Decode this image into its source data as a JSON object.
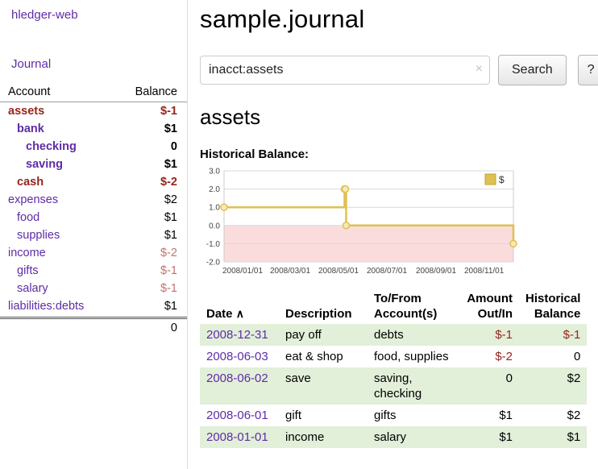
{
  "app": {
    "title": "hledger-web"
  },
  "sidebar": {
    "journal_link": "Journal",
    "headers": {
      "account": "Account",
      "balance": "Balance"
    },
    "accounts": [
      {
        "name": "assets",
        "balance": "$-1",
        "indent": 1,
        "bold": true,
        "name_color": "neg",
        "bal_color": "neg"
      },
      {
        "name": "bank",
        "balance": "$1",
        "indent": 2,
        "bold": true,
        "name_color": "",
        "bal_color": ""
      },
      {
        "name": "checking",
        "balance": "0",
        "indent": 3,
        "bold": true,
        "name_color": "",
        "bal_color": ""
      },
      {
        "name": "saving",
        "balance": "$1",
        "indent": 3,
        "bold": true,
        "name_color": "",
        "bal_color": ""
      },
      {
        "name": "cash",
        "balance": "$-2",
        "indent": 2,
        "bold": true,
        "name_color": "neg",
        "bal_color": "neg"
      },
      {
        "name": "expenses",
        "balance": "$2",
        "indent": 1,
        "bold": false,
        "name_color": "",
        "bal_color": ""
      },
      {
        "name": "food",
        "balance": "$1",
        "indent": 2,
        "bold": false,
        "name_color": "",
        "bal_color": ""
      },
      {
        "name": "supplies",
        "balance": "$1",
        "indent": 2,
        "bold": false,
        "name_color": "",
        "bal_color": ""
      },
      {
        "name": "income",
        "balance": "$-2",
        "indent": 1,
        "bold": false,
        "name_color": "",
        "bal_color": "negl"
      },
      {
        "name": "gifts",
        "balance": "$-1",
        "indent": 2,
        "bold": false,
        "name_color": "",
        "bal_color": "negl"
      },
      {
        "name": "salary",
        "balance": "$-1",
        "indent": 2,
        "bold": false,
        "name_color": "",
        "bal_color": "negl"
      },
      {
        "name": "liabilities:debts",
        "balance": "$1",
        "indent": 1,
        "bold": false,
        "name_color": "",
        "bal_color": ""
      }
    ],
    "total": "0"
  },
  "main": {
    "title": "sample.journal",
    "search": {
      "value": "inacct:assets",
      "clear_icon": "×",
      "button_label": "Search",
      "help_label": "?"
    },
    "account_heading": "assets",
    "chart_heading": "Historical Balance:"
  },
  "chart_data": {
    "type": "line",
    "step": true,
    "title": "Historical Balance:",
    "series": [
      {
        "name": "$",
        "points": [
          [
            "2008-01-01",
            1
          ],
          [
            "2008-06-01",
            2
          ],
          [
            "2008-06-02",
            2
          ],
          [
            "2008-06-03",
            0
          ],
          [
            "2008-12-31",
            -1
          ]
        ]
      }
    ],
    "ylim": [
      -2,
      3
    ],
    "y_ticks": [
      3.0,
      2.0,
      1.0,
      0.0,
      -1.0,
      -2.0
    ],
    "x_tick_labels": [
      "2008/01/01",
      "2008/03/01",
      "2008/05/01",
      "2008/07/01",
      "2008/09/01",
      "2008/11/01"
    ],
    "grid": true,
    "legend": {
      "label": "$",
      "position": "top-right"
    },
    "line_color": "#dfc050",
    "marker_fill": "#f7e9b6",
    "negative_region_color": "#fbdcdc"
  },
  "register": {
    "headers": {
      "date": "Date",
      "sort_icon": "∧",
      "description": "Description",
      "account": "To/From Account(s)",
      "amount": "Amount Out/In",
      "balance": "Historical Balance"
    },
    "rows": [
      {
        "date": "2008-12-31",
        "description": "pay off",
        "account": "debts",
        "amount": "$-1",
        "balance": "$-1",
        "amount_neg": true,
        "balance_neg": true
      },
      {
        "date": "2008-06-03",
        "description": "eat & shop",
        "account": "food, supplies",
        "amount": "$-2",
        "balance": "0",
        "amount_neg": true,
        "balance_neg": false
      },
      {
        "date": "2008-06-02",
        "description": "save",
        "account": "saving, checking",
        "amount": "0",
        "balance": "$2",
        "amount_neg": false,
        "balance_neg": false
      },
      {
        "date": "2008-06-01",
        "description": "gift",
        "account": "gifts",
        "amount": "$1",
        "balance": "$2",
        "amount_neg": false,
        "balance_neg": false
      },
      {
        "date": "2008-01-01",
        "description": "income",
        "account": "salary",
        "amount": "$1",
        "balance": "$1",
        "amount_neg": false,
        "balance_neg": false
      }
    ]
  }
}
